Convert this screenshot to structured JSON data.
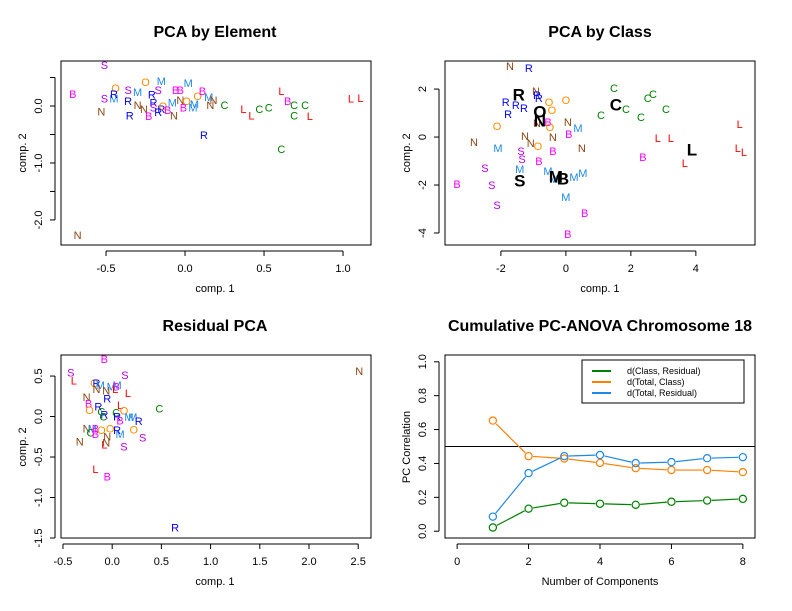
{
  "colors": {
    "B": "#ff00ff",
    "S": "#b400e6",
    "O": "#ff8c00",
    "M": "#1e88e5",
    "R": "#0000ff",
    "N": "#8b4513",
    "C": "#008000",
    "L": "#ff0000",
    "centroid": "#000000",
    "series_green": "#008000",
    "series_orange": "#ff7f00",
    "series_blue": "#1e88e5"
  },
  "chart_data": [
    {
      "id": "pca-element",
      "type": "scatter",
      "title": "PCA by Element",
      "xlabel": "comp. 1",
      "ylabel": "comp. 2",
      "xlim": [
        -0.785,
        1.177
      ],
      "ylim": [
        -2.44,
        0.79
      ],
      "xticks": [
        -0.5,
        0.0,
        0.5,
        1.0
      ],
      "xtick_labels": [
        "-0.5",
        "0.0",
        "0.5",
        "1.0"
      ],
      "yticks": [
        0.5,
        0.0,
        -0.5,
        -1.0,
        -1.5,
        -2.0
      ],
      "ytick_labels": [
        "",
        "0.0",
        "",
        "-1.0",
        "",
        "-2.0"
      ],
      "grid": false,
      "points": [
        {
          "label": "B",
          "x": -0.71,
          "y": 0.19
        },
        {
          "label": "S",
          "x": -0.51,
          "y": 0.7
        },
        {
          "label": "O",
          "x": -0.44,
          "y": 0.3
        },
        {
          "label": "S",
          "x": -0.51,
          "y": 0.11
        },
        {
          "label": "M",
          "x": -0.45,
          "y": 0.11
        },
        {
          "label": "R",
          "x": -0.45,
          "y": 0.19
        },
        {
          "label": "N",
          "x": -0.53,
          "y": -0.11
        },
        {
          "label": "S",
          "x": -0.36,
          "y": 0.26
        },
        {
          "label": "M",
          "x": -0.3,
          "y": 0.23
        },
        {
          "label": "R",
          "x": -0.36,
          "y": 0.07
        },
        {
          "label": "R",
          "x": -0.35,
          "y": -0.18
        },
        {
          "label": "N",
          "x": -0.3,
          "y": 0.0
        },
        {
          "label": "N",
          "x": -0.26,
          "y": -0.07
        },
        {
          "label": "B",
          "x": -0.23,
          "y": -0.19
        },
        {
          "label": "O",
          "x": -0.25,
          "y": 0.4
        },
        {
          "label": "M",
          "x": -0.15,
          "y": 0.42
        },
        {
          "label": "S",
          "x": -0.17,
          "y": 0.26
        },
        {
          "label": "R",
          "x": -0.21,
          "y": 0.18
        },
        {
          "label": "R",
          "x": -0.2,
          "y": 0.04
        },
        {
          "label": "S",
          "x": -0.2,
          "y": -0.04
        },
        {
          "label": "R",
          "x": -0.15,
          "y": -0.07
        },
        {
          "label": "R",
          "x": -0.17,
          "y": -0.12
        },
        {
          "label": "O",
          "x": -0.14,
          "y": -0.02
        },
        {
          "label": "B",
          "x": -0.11,
          "y": -0.09
        },
        {
          "label": "M",
          "x": -0.08,
          "y": 0.04
        },
        {
          "label": "N",
          "x": -0.07,
          "y": -0.18
        },
        {
          "label": "B",
          "x": -0.06,
          "y": 0.26
        },
        {
          "label": "B",
          "x": -0.03,
          "y": 0.26
        },
        {
          "label": "M",
          "x": 0.02,
          "y": 0.39
        },
        {
          "label": "N",
          "x": -0.03,
          "y": 0.09
        },
        {
          "label": "O",
          "x": 0.01,
          "y": 0.07
        },
        {
          "label": "B",
          "x": -0.01,
          "y": -0.04
        },
        {
          "label": "M",
          "x": 0.06,
          "y": 0.02
        },
        {
          "label": "M",
          "x": 0.05,
          "y": -0.04
        },
        {
          "label": "O",
          "x": 0.08,
          "y": 0.16
        },
        {
          "label": "B",
          "x": 0.11,
          "y": 0.25
        },
        {
          "label": "M",
          "x": 0.15,
          "y": 0.14
        },
        {
          "label": "N",
          "x": 0.18,
          "y": 0.09
        },
        {
          "label": "N",
          "x": 0.16,
          "y": 0.0
        },
        {
          "label": "C",
          "x": 0.25,
          "y": 0.0
        },
        {
          "label": "R",
          "x": 0.12,
          "y": -0.53
        },
        {
          "label": "L",
          "x": 0.37,
          "y": -0.07
        },
        {
          "label": "L",
          "x": 0.42,
          "y": -0.18
        },
        {
          "label": "C",
          "x": 0.47,
          "y": -0.07
        },
        {
          "label": "C",
          "x": 0.53,
          "y": -0.04
        },
        {
          "label": "L",
          "x": 0.61,
          "y": 0.25
        },
        {
          "label": "B",
          "x": 0.65,
          "y": 0.07
        },
        {
          "label": "C",
          "x": 0.69,
          "y": 0.0
        },
        {
          "label": "C",
          "x": 0.69,
          "y": -0.18
        },
        {
          "label": "C",
          "x": 0.76,
          "y": 0.0
        },
        {
          "label": "L",
          "x": 0.79,
          "y": -0.19
        },
        {
          "label": "C",
          "x": 0.61,
          "y": -0.77
        },
        {
          "label": "L",
          "x": 1.05,
          "y": 0.11
        },
        {
          "label": "L",
          "x": 1.11,
          "y": 0.12
        },
        {
          "label": "N",
          "x": -0.68,
          "y": -2.28
        }
      ]
    },
    {
      "id": "pca-class",
      "type": "scatter",
      "title": "PCA by Class",
      "xlabel": "comp. 1",
      "ylabel": "comp. 2",
      "xlim": [
        -3.72,
        5.82
      ],
      "ylim": [
        -4.5,
        3.17
      ],
      "xticks": [
        -2,
        0,
        2,
        4
      ],
      "xtick_labels": [
        "-2",
        "0",
        "2",
        "4"
      ],
      "yticks": [
        2,
        0,
        -2,
        -4
      ],
      "ytick_labels": [
        "2",
        "0",
        "-2",
        "-4"
      ],
      "grid": false,
      "points": [
        {
          "label": "N",
          "x": -1.72,
          "y": 2.92
        },
        {
          "label": "R",
          "x": -1.14,
          "y": 2.83
        },
        {
          "label": "N",
          "x": -0.92,
          "y": 1.88
        },
        {
          "label": "R",
          "x": -0.89,
          "y": 1.71
        },
        {
          "label": "R",
          "x": -0.83,
          "y": 1.58
        },
        {
          "label": "R",
          "x": -1.85,
          "y": 1.42
        },
        {
          "label": "R",
          "x": -1.54,
          "y": 1.29
        },
        {
          "label": "R",
          "x": -1.29,
          "y": 1.17
        },
        {
          "label": "R",
          "x": -1.78,
          "y": 0.92
        },
        {
          "label": "O",
          "x": -0.52,
          "y": 1.42
        },
        {
          "label": "O",
          "x": 0.0,
          "y": 1.5
        },
        {
          "label": "O",
          "x": -0.43,
          "y": 1.08
        },
        {
          "label": "N",
          "x": -0.89,
          "y": 0.54
        },
        {
          "label": "B",
          "x": -0.55,
          "y": 0.58
        },
        {
          "label": "O",
          "x": -0.49,
          "y": 0.38
        },
        {
          "label": "O",
          "x": -2.12,
          "y": 0.42
        },
        {
          "label": "N",
          "x": 0.06,
          "y": 0.58
        },
        {
          "label": "M",
          "x": 0.37,
          "y": 0.33
        },
        {
          "label": "B",
          "x": 0.09,
          "y": 0.08
        },
        {
          "label": "N",
          "x": -1.26,
          "y": 0.0
        },
        {
          "label": "N",
          "x": -0.4,
          "y": -0.04
        },
        {
          "label": "N",
          "x": -1.08,
          "y": -0.29
        },
        {
          "label": "O",
          "x": -0.86,
          "y": -0.42
        },
        {
          "label": "N",
          "x": -2.83,
          "y": -0.25
        },
        {
          "label": "M",
          "x": -2.09,
          "y": -0.5
        },
        {
          "label": "S",
          "x": -1.38,
          "y": -0.62
        },
        {
          "label": "B",
          "x": -0.4,
          "y": -0.62
        },
        {
          "label": "N",
          "x": 0.49,
          "y": -0.5
        },
        {
          "label": "S",
          "x": -1.35,
          "y": -0.96
        },
        {
          "label": "B",
          "x": -0.83,
          "y": -1.04
        },
        {
          "label": "S",
          "x": -2.49,
          "y": -1.33
        },
        {
          "label": "M",
          "x": -1.42,
          "y": -1.38
        },
        {
          "label": "M",
          "x": -0.55,
          "y": -1.46
        },
        {
          "label": "M",
          "x": -0.37,
          "y": -1.79
        },
        {
          "label": "M",
          "x": 0.25,
          "y": -1.71
        },
        {
          "label": "M",
          "x": 0.52,
          "y": -1.54
        },
        {
          "label": "B",
          "x": -3.35,
          "y": -2.0
        },
        {
          "label": "S",
          "x": -2.28,
          "y": -2.04
        },
        {
          "label": "S",
          "x": -2.12,
          "y": -2.88
        },
        {
          "label": "M",
          "x": 0.0,
          "y": -2.54
        },
        {
          "label": "B",
          "x": 0.58,
          "y": -3.21
        },
        {
          "label": "B",
          "x": 0.06,
          "y": -4.08
        },
        {
          "label": "C",
          "x": 1.48,
          "y": 2.0
        },
        {
          "label": "C",
          "x": 2.52,
          "y": 1.58
        },
        {
          "label": "C",
          "x": 2.68,
          "y": 1.75
        },
        {
          "label": "C",
          "x": 1.08,
          "y": 0.87
        },
        {
          "label": "C",
          "x": 1.85,
          "y": 1.12
        },
        {
          "label": "C",
          "x": 2.31,
          "y": 0.79
        },
        {
          "label": "C",
          "x": 3.08,
          "y": 1.12
        },
        {
          "label": "L",
          "x": 2.83,
          "y": -0.08
        },
        {
          "label": "L",
          "x": 3.23,
          "y": -0.08
        },
        {
          "label": "L",
          "x": 3.66,
          "y": -1.13
        },
        {
          "label": "B",
          "x": 2.37,
          "y": -0.88
        },
        {
          "label": "L",
          "x": 5.35,
          "y": 0.5
        },
        {
          "label": "L",
          "x": 5.29,
          "y": -0.5
        },
        {
          "label": "L",
          "x": 5.48,
          "y": -0.67
        }
      ],
      "centroids": [
        {
          "label": "R",
          "x": -1.45,
          "y": 1.75
        },
        {
          "label": "O",
          "x": -0.8,
          "y": 1.04
        },
        {
          "label": "N",
          "x": -0.8,
          "y": 0.67
        },
        {
          "label": "C",
          "x": 1.54,
          "y": 1.33
        },
        {
          "label": "L",
          "x": 3.88,
          "y": -0.54
        },
        {
          "label": "S",
          "x": -1.42,
          "y": -1.83
        },
        {
          "label": "M",
          "x": -0.31,
          "y": -1.67
        },
        {
          "label": "B",
          "x": -0.09,
          "y": -1.75
        }
      ]
    },
    {
      "id": "residual-pca",
      "type": "scatter",
      "title": "Residual PCA",
      "xlabel": "comp. 1",
      "ylabel": "comp. 2",
      "xlim": [
        -0.52,
        2.63
      ],
      "ylim": [
        -1.5,
        0.76
      ],
      "xticks": [
        -0.5,
        0.0,
        0.5,
        1.0,
        1.5,
        2.0,
        2.5
      ],
      "xtick_labels": [
        "-0.5",
        "0.0",
        "0.5",
        "1.0",
        "1.5",
        "2.0",
        "2.5"
      ],
      "yticks": [
        0.5,
        0.0,
        -0.5,
        -1.0,
        -1.5
      ],
      "ytick_labels": [
        "0.5",
        "0.0",
        "-0.5",
        "-1.0",
        "-1.5"
      ],
      "grid": false,
      "points": [
        {
          "label": "B",
          "x": -0.08,
          "y": 0.7
        },
        {
          "label": "S",
          "x": -0.42,
          "y": 0.53
        },
        {
          "label": "L",
          "x": -0.39,
          "y": 0.43
        },
        {
          "label": "S",
          "x": 0.13,
          "y": 0.5
        },
        {
          "label": "N",
          "x": 2.51,
          "y": 0.55
        },
        {
          "label": "O",
          "x": -0.18,
          "y": 0.4
        },
        {
          "label": "R",
          "x": -0.16,
          "y": 0.4
        },
        {
          "label": "M",
          "x": -0.12,
          "y": 0.38
        },
        {
          "label": "N",
          "x": -0.16,
          "y": 0.33
        },
        {
          "label": "N",
          "x": -0.06,
          "y": 0.31
        },
        {
          "label": "M",
          "x": -0.01,
          "y": 0.36
        },
        {
          "label": "M",
          "x": 0.05,
          "y": 0.38
        },
        {
          "label": "B",
          "x": 0.04,
          "y": 0.36
        },
        {
          "label": "L",
          "x": 0.03,
          "y": 0.33
        },
        {
          "label": "R",
          "x": -0.05,
          "y": 0.21
        },
        {
          "label": "L",
          "x": 0.16,
          "y": 0.28
        },
        {
          "label": "N",
          "x": -0.26,
          "y": 0.23
        },
        {
          "label": "B",
          "x": -0.24,
          "y": 0.15
        },
        {
          "label": "O",
          "x": -0.23,
          "y": 0.07
        },
        {
          "label": "R",
          "x": -0.14,
          "y": 0.11
        },
        {
          "label": "L",
          "x": 0.08,
          "y": 0.13
        },
        {
          "label": "O",
          "x": 0.12,
          "y": 0.06
        },
        {
          "label": "C",
          "x": 0.48,
          "y": 0.09
        },
        {
          "label": "C",
          "x": -0.11,
          "y": 0.05
        },
        {
          "label": "R",
          "x": -0.08,
          "y": 0.01
        },
        {
          "label": "C",
          "x": -0.09,
          "y": -0.01
        },
        {
          "label": "C",
          "x": 0.04,
          "y": 0.04
        },
        {
          "label": "R",
          "x": 0.05,
          "y": -0.01
        },
        {
          "label": "M",
          "x": 0.17,
          "y": -0.02
        },
        {
          "label": "M",
          "x": 0.21,
          "y": -0.02
        },
        {
          "label": "B",
          "x": 0.08,
          "y": -0.06
        },
        {
          "label": "R",
          "x": 0.27,
          "y": -0.07
        },
        {
          "label": "N",
          "x": -0.26,
          "y": -0.16
        },
        {
          "label": "M",
          "x": -0.2,
          "y": -0.16
        },
        {
          "label": "C",
          "x": -0.22,
          "y": -0.21
        },
        {
          "label": "B",
          "x": -0.17,
          "y": -0.16
        },
        {
          "label": "O",
          "x": -0.11,
          "y": -0.18
        },
        {
          "label": "O",
          "x": -0.02,
          "y": -0.16
        },
        {
          "label": "O",
          "x": 0.22,
          "y": -0.17
        },
        {
          "label": "R",
          "x": 0.05,
          "y": -0.18
        },
        {
          "label": "M",
          "x": 0.08,
          "y": -0.23
        },
        {
          "label": "B",
          "x": -0.17,
          "y": -0.23
        },
        {
          "label": "S",
          "x": 0.31,
          "y": -0.27
        },
        {
          "label": "N",
          "x": -0.33,
          "y": -0.32
        },
        {
          "label": "N",
          "x": -0.05,
          "y": -0.26
        },
        {
          "label": "L",
          "x": -0.08,
          "y": -0.36
        },
        {
          "label": "N",
          "x": -0.06,
          "y": -0.33
        },
        {
          "label": "S",
          "x": 0.12,
          "y": -0.38
        },
        {
          "label": "L",
          "x": -0.17,
          "y": -0.66
        },
        {
          "label": "B",
          "x": -0.05,
          "y": -0.75
        },
        {
          "label": "R",
          "x": 0.64,
          "y": -1.38
        }
      ]
    },
    {
      "id": "cumulative-pc-anova",
      "type": "line",
      "title": "Cumulative PC-ANOVA Chromosome 18",
      "xlabel": "Number of Components",
      "ylabel": "PC Correlation",
      "xlim": [
        -0.34,
        8.34
      ],
      "ylim": [
        -0.04,
        1.04
      ],
      "xticks": [
        0,
        2,
        4,
        6,
        8
      ],
      "xtick_labels": [
        "0",
        "2",
        "4",
        "6",
        "8"
      ],
      "yticks": [
        0.0,
        0.2,
        0.4,
        0.6,
        0.8,
        1.0
      ],
      "ytick_labels": [
        "0.0",
        "0.2",
        "0.4",
        "0.6",
        "0.8",
        "1.0"
      ],
      "hline": 0.5,
      "grid": false,
      "legend_position": "top-right",
      "x": [
        1,
        2,
        3,
        4,
        5,
        6,
        7,
        8
      ],
      "series": [
        {
          "name": "d(Class, Residual)",
          "color_key": "series_green",
          "values": [
            0.022,
            0.133,
            0.168,
            0.162,
            0.156,
            0.174,
            0.181,
            0.191
          ]
        },
        {
          "name": "d(Total, Class)",
          "color_key": "series_orange",
          "values": [
            0.653,
            0.443,
            0.429,
            0.403,
            0.372,
            0.361,
            0.361,
            0.349
          ]
        },
        {
          "name": "d(Total, Residual)",
          "color_key": "series_blue",
          "values": [
            0.086,
            0.343,
            0.443,
            0.45,
            0.402,
            0.408,
            0.431,
            0.437
          ]
        }
      ]
    }
  ]
}
